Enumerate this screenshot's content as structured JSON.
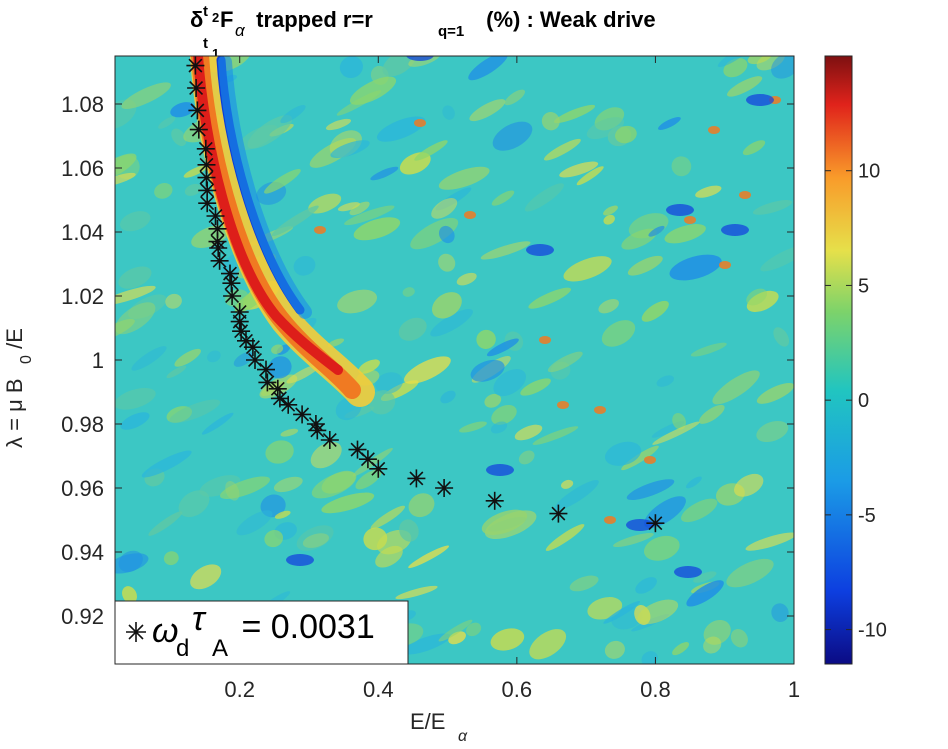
{
  "chart_data": {
    "type": "heatmap",
    "title": {
      "pre": "δ",
      "sup": "t",
      "sup_sub": "2",
      "sub": "t",
      "sub_sub": "1",
      "main": "F",
      "main_sub": "α",
      "rest": " trapped r=r",
      "r_sub": "q=1",
      "tail": " (%) : Weak drive"
    },
    "xlabel": {
      "text": "E/E",
      "sub": "α"
    },
    "ylabel": {
      "text1": "λ = μ B",
      "sub": "0",
      "text2": " /E"
    },
    "xlim": [
      0.02,
      1.0
    ],
    "ylim": [
      0.905,
      1.095
    ],
    "xticks": [
      "0.2",
      "0.4",
      "0.6",
      "0.8",
      "1"
    ],
    "yticks": [
      "0.92",
      "0.94",
      "0.96",
      "0.98",
      "1",
      "1.02",
      "1.04",
      "1.06",
      "1.08"
    ],
    "colorbar": {
      "min": -11.5,
      "max": 15,
      "ticks": [
        "-10",
        "-5",
        "0",
        "5",
        "10"
      ]
    },
    "resonance_markers": {
      "name": "ω_d τ_A = 0.0031",
      "points": [
        [
          0.136,
          1.092
        ],
        [
          0.137,
          1.085
        ],
        [
          0.139,
          1.078
        ],
        [
          0.141,
          1.072
        ],
        [
          0.151,
          1.066
        ],
        [
          0.152,
          1.061
        ],
        [
          0.152,
          1.057
        ],
        [
          0.153,
          1.053
        ],
        [
          0.153,
          1.049
        ],
        [
          0.165,
          1.045
        ],
        [
          0.168,
          1.041
        ],
        [
          0.168,
          1.037
        ],
        [
          0.169,
          1.035
        ],
        [
          0.171,
          1.031
        ],
        [
          0.186,
          1.027
        ],
        [
          0.188,
          1.024
        ],
        [
          0.189,
          1.02
        ],
        [
          0.2,
          1.015
        ],
        [
          0.2,
          1.012
        ],
        [
          0.202,
          1.009
        ],
        [
          0.209,
          1.006
        ],
        [
          0.219,
          1.004
        ],
        [
          0.222,
          1.0
        ],
        [
          0.238,
          0.997
        ],
        [
          0.24,
          0.993
        ],
        [
          0.255,
          0.991
        ],
        [
          0.258,
          0.988
        ],
        [
          0.27,
          0.986
        ],
        [
          0.29,
          0.983
        ],
        [
          0.31,
          0.98
        ],
        [
          0.312,
          0.978
        ],
        [
          0.33,
          0.975
        ],
        [
          0.37,
          0.972
        ],
        [
          0.385,
          0.969
        ],
        [
          0.4,
          0.966
        ],
        [
          0.455,
          0.963
        ],
        [
          0.495,
          0.96
        ],
        [
          0.568,
          0.956
        ],
        [
          0.66,
          0.952
        ],
        [
          0.8,
          0.949
        ]
      ]
    },
    "legend": {
      "location": "bottom-left",
      "entry": {
        "symbol": "*",
        "w": "ω",
        "w_sub": "d",
        "t": "τ",
        "t_sub": "A",
        "value": " = 0.0031"
      }
    }
  }
}
